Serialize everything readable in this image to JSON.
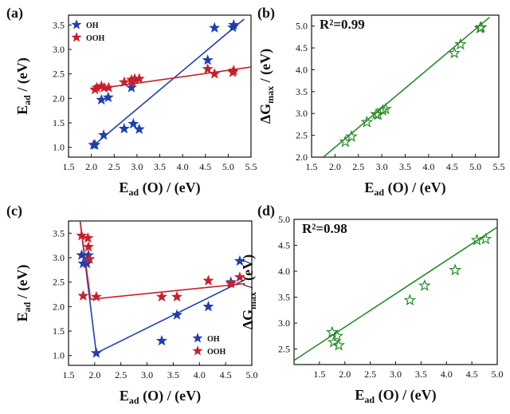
{
  "figure": {
    "panel_labels": [
      "(a)",
      "(b)",
      "(c)",
      "(d)"
    ]
  },
  "chart_data": [
    {
      "panel": "(a)",
      "type": "scatter",
      "xlabel": "E_ad (O) / (eV)",
      "ylabel": "E_ad / (eV)",
      "xlim": [
        1.5,
        5.5
      ],
      "ylim": [
        0.8,
        3.7
      ],
      "xticks": [
        "1.5",
        "2.0",
        "2.5",
        "3.0",
        "3.5",
        "4.0",
        "4.5",
        "5.0",
        "5.5"
      ],
      "yticks": [
        "1.0",
        "1.5",
        "2.0",
        "2.5",
        "3.0",
        "3.5"
      ],
      "xtick_values": [
        1.5,
        2.0,
        2.5,
        3.0,
        3.5,
        4.0,
        4.5,
        5.0,
        5.5
      ],
      "ytick_values": [
        1.0,
        1.5,
        2.0,
        2.5,
        3.0,
        3.5
      ],
      "legend_position": "top-left",
      "series": [
        {
          "name": "OH",
          "color": "#1f3fb0",
          "marker": "filled-star",
          "points": [
            [
              2.05,
              1.05
            ],
            [
              2.08,
              1.05
            ],
            [
              2.22,
              1.97
            ],
            [
              2.27,
              1.25
            ],
            [
              2.37,
              2.02
            ],
            [
              2.72,
              1.38
            ],
            [
              2.88,
              2.22
            ],
            [
              2.92,
              1.48
            ],
            [
              3.05,
              1.37
            ],
            [
              4.55,
              2.78
            ],
            [
              4.7,
              3.44
            ],
            [
              5.1,
              3.45
            ],
            [
              5.12,
              3.5
            ]
          ],
          "fit": [
            [
              2.0,
              1.0
            ],
            [
              5.35,
              3.62
            ]
          ]
        },
        {
          "name": "OOH",
          "color": "#c8202a",
          "marker": "filled-star",
          "points": [
            [
              2.08,
              2.18
            ],
            [
              2.12,
              2.22
            ],
            [
              2.22,
              2.25
            ],
            [
              2.28,
              2.22
            ],
            [
              2.38,
              2.22
            ],
            [
              2.72,
              2.33
            ],
            [
              2.88,
              2.38
            ],
            [
              2.9,
              2.33
            ],
            [
              2.95,
              2.4
            ],
            [
              3.05,
              2.4
            ],
            [
              4.55,
              2.6
            ],
            [
              4.7,
              2.5
            ],
            [
              5.1,
              2.53
            ],
            [
              5.12,
              2.57
            ]
          ],
          "fit": [
            [
              2.0,
              2.18
            ],
            [
              5.5,
              2.64
            ]
          ]
        }
      ]
    },
    {
      "panel": "(b)",
      "type": "scatter",
      "xlabel": "E_ad (O) / (eV)",
      "ylabel": "ΔG_max / (eV)",
      "annotation": "R²=0.99",
      "xlim": [
        1.5,
        5.5
      ],
      "ylim": [
        2.0,
        5.25
      ],
      "xticks": [
        "1.5",
        "2.0",
        "2.5",
        "3.0",
        "3.5",
        "4.0",
        "4.5",
        "5.0",
        "5.5"
      ],
      "yticks": [
        "2.0",
        "2.5",
        "3.0",
        "3.5",
        "4.0",
        "4.5",
        "5.0"
      ],
      "xtick_values": [
        1.5,
        2.0,
        2.5,
        3.0,
        3.5,
        4.0,
        4.5,
        5.0,
        5.5
      ],
      "ytick_values": [
        2.0,
        2.5,
        3.0,
        3.5,
        4.0,
        4.5,
        5.0
      ],
      "series": [
        {
          "name": "",
          "color": "#2a8a2a",
          "marker": "open-star",
          "points": [
            [
              2.22,
              2.35
            ],
            [
              2.35,
              2.47
            ],
            [
              2.68,
              2.8
            ],
            [
              2.88,
              2.98
            ],
            [
              2.92,
              2.97
            ],
            [
              3.02,
              3.07
            ],
            [
              3.08,
              3.1
            ],
            [
              4.55,
              4.38
            ],
            [
              4.68,
              4.58
            ],
            [
              5.1,
              4.95
            ],
            [
              5.12,
              4.97
            ]
          ],
          "fit": [
            [
              1.75,
              2.0
            ],
            [
              5.3,
              5.2
            ]
          ]
        }
      ]
    },
    {
      "panel": "(c)",
      "type": "scatter",
      "xlabel": "E_ad (O) / (eV)",
      "ylabel": "E_ad / (eV)",
      "xlim": [
        1.5,
        5.0
      ],
      "ylim": [
        0.8,
        3.75
      ],
      "xticks": [
        "1.5",
        "2.0",
        "2.5",
        "3.0",
        "3.5",
        "4.0",
        "4.5",
        "5.0"
      ],
      "yticks": [
        "1.0",
        "1.5",
        "2.0",
        "2.5",
        "3.0",
        "3.5"
      ],
      "xtick_values": [
        1.5,
        2.0,
        2.5,
        3.0,
        3.5,
        4.0,
        4.5,
        5.0
      ],
      "ytick_values": [
        1.0,
        1.5,
        2.0,
        2.5,
        3.0,
        3.5
      ],
      "legend_position": "bottom-right",
      "series": [
        {
          "name": "OH",
          "color": "#1f3fb0",
          "marker": "filled-star",
          "points": [
            [
              1.75,
              3.05
            ],
            [
              1.78,
              2.88
            ],
            [
              1.85,
              2.88
            ],
            [
              1.88,
              3.05
            ],
            [
              2.03,
              1.05
            ],
            [
              3.28,
              1.3
            ],
            [
              3.57,
              1.83
            ],
            [
              4.17,
              2.0
            ],
            [
              4.6,
              2.5
            ],
            [
              4.77,
              2.93
            ]
          ],
          "fit": [
            [
              1.72,
              3.75
            ],
            [
              2.03,
              1.05
            ],
            [
              4.87,
              2.55
            ]
          ]
        },
        {
          "name": "OOH",
          "color": "#c8202a",
          "marker": "filled-star",
          "points": [
            [
              1.75,
              3.45
            ],
            [
              1.78,
              2.22
            ],
            [
              1.87,
              3.4
            ],
            [
              1.88,
              3.22
            ],
            [
              1.9,
              2.97
            ],
            [
              2.03,
              2.2
            ],
            [
              3.28,
              2.2
            ],
            [
              3.57,
              2.2
            ],
            [
              4.17,
              2.53
            ],
            [
              4.6,
              2.47
            ],
            [
              4.77,
              2.6
            ]
          ],
          "fit": [
            [
              1.72,
              3.75
            ],
            [
              1.92,
              2.15
            ],
            [
              4.87,
              2.47
            ]
          ]
        }
      ]
    },
    {
      "panel": "(d)",
      "type": "scatter",
      "xlabel": "E_ad (O) / (eV)",
      "ylabel": "ΔG_max / (eV)",
      "annotation": "R²=0.98",
      "xlim": [
        1.0,
        5.0
      ],
      "ylim": [
        2.2,
        5.0
      ],
      "xticks": [
        "1.5",
        "2.0",
        "2.5",
        "3.0",
        "3.5",
        "4.0",
        "4.5",
        "5.0"
      ],
      "yticks": [
        "2.5",
        "3.0",
        "3.5",
        "4.0",
        "4.5",
        "5.0"
      ],
      "xtick_values": [
        1.5,
        2.0,
        2.5,
        3.0,
        3.5,
        4.0,
        4.5,
        5.0
      ],
      "ytick_values": [
        2.5,
        3.0,
        3.5,
        4.0,
        4.5,
        5.0
      ],
      "series": [
        {
          "name": "",
          "color": "#2a8a2a",
          "marker": "open-star",
          "points": [
            [
              1.75,
              2.82
            ],
            [
              1.78,
              2.63
            ],
            [
              1.85,
              2.75
            ],
            [
              1.88,
              2.57
            ],
            [
              3.28,
              3.44
            ],
            [
              3.57,
              3.72
            ],
            [
              4.17,
              4.02
            ],
            [
              4.6,
              4.6
            ],
            [
              4.77,
              4.62
            ]
          ],
          "fit": [
            [
              1.0,
              2.28
            ],
            [
              5.0,
              4.85
            ]
          ]
        }
      ]
    }
  ]
}
